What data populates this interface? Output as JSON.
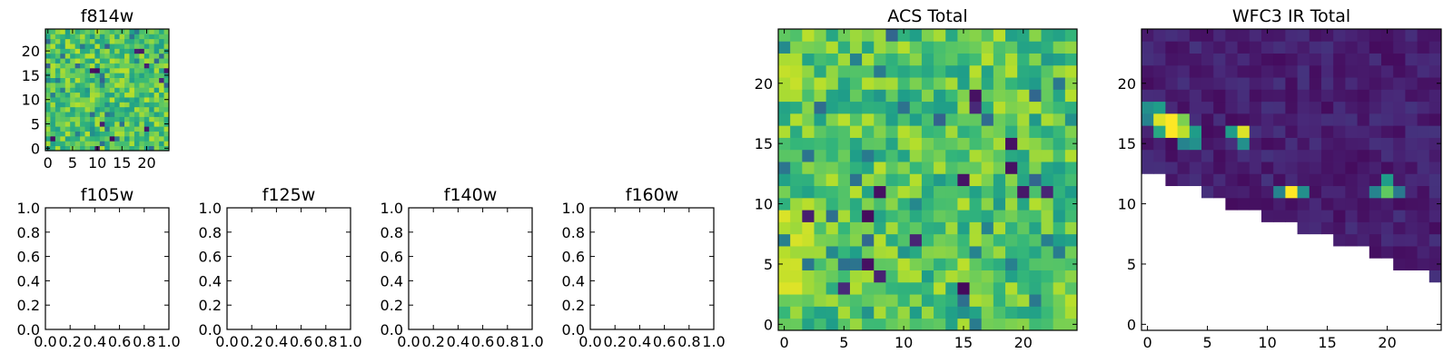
{
  "chart_data": [
    {
      "type": "heatmap",
      "title": "f814w",
      "x_ticks": [
        "0",
        "5",
        "10",
        "15",
        "20"
      ],
      "y_ticks": [
        "0",
        "5",
        "10",
        "15",
        "20"
      ],
      "grid_size": 25,
      "colormap": "viridis",
      "xlim": [
        -0.5,
        24.5
      ],
      "ylim": [
        -0.5,
        24.5
      ],
      "values": "noisy 25x25 flux map, mostly green-yellow (0.5-0.95 of colour scale) with scattered dark blue/purple pixels"
    },
    {
      "type": "heatmap",
      "title": "f105w",
      "x_ticks": [
        "0.0",
        "0.2",
        "0.4",
        "0.6",
        "0.8",
        "1.0"
      ],
      "y_ticks": [
        "0.0",
        "0.2",
        "0.4",
        "0.6",
        "0.8",
        "1.0"
      ],
      "xlim": [
        0,
        1
      ],
      "ylim": [
        0,
        1
      ],
      "empty": true
    },
    {
      "type": "heatmap",
      "title": "f125w",
      "x_ticks": [
        "0.0",
        "0.2",
        "0.4",
        "0.6",
        "0.8",
        "1.0"
      ],
      "y_ticks": [
        "0.0",
        "0.2",
        "0.4",
        "0.6",
        "0.8",
        "1.0"
      ],
      "xlim": [
        0,
        1
      ],
      "ylim": [
        0,
        1
      ],
      "empty": true
    },
    {
      "type": "heatmap",
      "title": "f140w",
      "x_ticks": [
        "0.0",
        "0.2",
        "0.4",
        "0.6",
        "0.8",
        "1.0"
      ],
      "y_ticks": [
        "0.0",
        "0.2",
        "0.4",
        "0.6",
        "0.8",
        "1.0"
      ],
      "xlim": [
        0,
        1
      ],
      "ylim": [
        0,
        1
      ],
      "empty": true
    },
    {
      "type": "heatmap",
      "title": "f160w",
      "x_ticks": [
        "0.0",
        "0.2",
        "0.4",
        "0.6",
        "0.8",
        "1.0"
      ],
      "y_ticks": [
        "0.0",
        "0.2",
        "0.4",
        "0.6",
        "0.8",
        "1.0"
      ],
      "xlim": [
        0,
        1
      ],
      "ylim": [
        0,
        1
      ],
      "empty": true
    },
    {
      "type": "heatmap",
      "title": "ACS Total",
      "x_ticks": [
        "0",
        "5",
        "10",
        "15",
        "20"
      ],
      "y_ticks": [
        "0",
        "5",
        "10",
        "15",
        "20"
      ],
      "grid_size": 25,
      "colormap": "viridis",
      "xlim": [
        -0.5,
        24.5
      ],
      "ylim": [
        -0.5,
        24.5
      ],
      "values": "noisy 25x25 flux map, mostly green-yellow with a brighter yellow band on the left side (columns 0-2) and scattered dark pixels"
    },
    {
      "type": "heatmap",
      "title": "WFC3 IR Total",
      "x_ticks": [
        "0",
        "5",
        "10",
        "15",
        "20"
      ],
      "y_ticks": [
        "0",
        "5",
        "10",
        "15",
        "20"
      ],
      "grid_size": 25,
      "colormap": "viridis",
      "xlim": [
        -0.5,
        24.5
      ],
      "ylim": [
        -0.5,
        24.5
      ],
      "values": "25x25 map, mostly dark purple, blank (no data) in the lower-right triangle; bright sources near (2,17), (8,16), (12,11), (20,11)",
      "bright_pixels": [
        {
          "x": 1,
          "y": 17,
          "v": 0.95
        },
        {
          "x": 2,
          "y": 17,
          "v": 1.0
        },
        {
          "x": 3,
          "y": 17,
          "v": 0.8
        },
        {
          "x": 2,
          "y": 16,
          "v": 1.0
        },
        {
          "x": 3,
          "y": 16,
          "v": 0.9
        },
        {
          "x": 1,
          "y": 16,
          "v": 0.6
        },
        {
          "x": 0,
          "y": 18,
          "v": 0.5
        },
        {
          "x": 1,
          "y": 18,
          "v": 0.55
        },
        {
          "x": 0,
          "y": 17,
          "v": 0.45
        },
        {
          "x": 4,
          "y": 16,
          "v": 0.55
        },
        {
          "x": 3,
          "y": 15,
          "v": 0.45
        },
        {
          "x": 4,
          "y": 15,
          "v": 0.5
        },
        {
          "x": 8,
          "y": 16,
          "v": 0.95
        },
        {
          "x": 7,
          "y": 16,
          "v": 0.55
        },
        {
          "x": 8,
          "y": 15,
          "v": 0.5
        },
        {
          "x": 12,
          "y": 11,
          "v": 1.0
        },
        {
          "x": 11,
          "y": 11,
          "v": 0.45
        },
        {
          "x": 13,
          "y": 11,
          "v": 0.5
        },
        {
          "x": 20,
          "y": 11,
          "v": 0.75
        },
        {
          "x": 20,
          "y": 12,
          "v": 0.55
        },
        {
          "x": 19,
          "y": 11,
          "v": 0.45
        },
        {
          "x": 21,
          "y": 11,
          "v": 0.4
        }
      ]
    }
  ]
}
